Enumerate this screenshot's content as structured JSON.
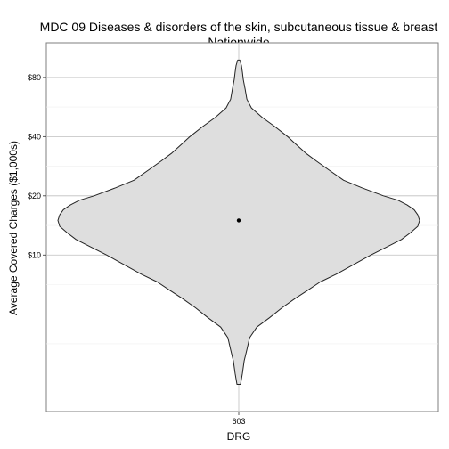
{
  "chart_data": {
    "type": "violin",
    "title": "MDC 09 Diseases & disorders of the skin, subcutaneous tissue & breast",
    "subtitle": "Nationwide",
    "xlabel": "DRG",
    "ylabel": "Average Covered Charges ($1,000s)",
    "categories": [
      "603"
    ],
    "y_scale": "log",
    "ylim": [
      1.6,
      120
    ],
    "y_ticks": [
      {
        "value": 10,
        "label": "$10"
      },
      {
        "value": 20,
        "label": "$20"
      },
      {
        "value": 40,
        "label": "$40"
      },
      {
        "value": 80,
        "label": "$80"
      }
    ],
    "grid": true,
    "point": {
      "category": "603",
      "value": 15
    },
    "density": {
      "y": [
        2.2,
        2.5,
        2.9,
        3.3,
        3.8,
        4.3,
        4.8,
        5.4,
        6.0,
        6.6,
        7.3,
        8.0,
        9.0,
        10.0,
        11.0,
        12.0,
        13.0,
        14.0,
        15.0,
        16.0,
        17.0,
        18.0,
        19.0,
        20.0,
        22.0,
        24.0,
        27.0,
        30.0,
        33.0,
        37.0,
        40.0,
        45.0,
        50.0,
        56.0,
        62.0,
        70.0,
        78.0,
        85.0,
        92.0,
        98.0
      ],
      "halfwidth": [
        0.01,
        0.02,
        0.03,
        0.045,
        0.06,
        0.1,
        0.17,
        0.24,
        0.31,
        0.38,
        0.45,
        0.54,
        0.64,
        0.73,
        0.82,
        0.9,
        0.95,
        0.99,
        1.0,
        0.99,
        0.97,
        0.93,
        0.88,
        0.8,
        0.68,
        0.58,
        0.5,
        0.43,
        0.37,
        0.31,
        0.27,
        0.2,
        0.13,
        0.07,
        0.045,
        0.035,
        0.025,
        0.02,
        0.015,
        0.006
      ]
    },
    "colors": {
      "violin_fill": "#dedede",
      "violin_stroke": "#222222",
      "point": "#000000",
      "grid_major": "#bfbfbf",
      "grid_minor": "#efefef",
      "panel_border": "#7f7f7f"
    }
  }
}
